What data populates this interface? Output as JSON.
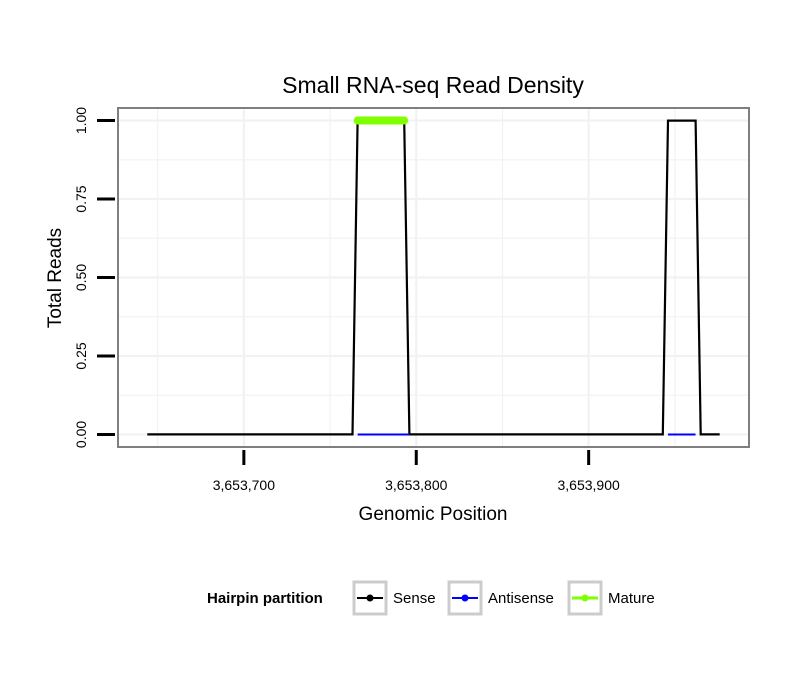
{
  "chart_data": {
    "type": "line",
    "title": "Small RNA-seq Read Density",
    "xlabel": "Genomic Position",
    "ylabel": "Total Reads",
    "xlim": [
      3653627,
      3653993
    ],
    "ylim": [
      -0.04,
      1.04
    ],
    "x_ticks": [
      3653700,
      3653800,
      3653900
    ],
    "x_tick_labels": [
      "3,653,700",
      "3,653,800",
      "3,653,900"
    ],
    "y_ticks": [
      0,
      0.25,
      0.5,
      0.75,
      1.0
    ],
    "y_tick_labels": [
      "0.00",
      "0.25",
      "0.50",
      "0.75",
      "1.00"
    ],
    "grid": true,
    "legend_position": "bottom",
    "legend_title": "Hairpin partition",
    "series": [
      {
        "name": "Sense",
        "color": "#000000",
        "x": [
          3653644,
          3653763,
          3653766,
          3653793,
          3653796,
          3653943,
          3653946,
          3653962,
          3653965,
          3653976
        ],
        "y": [
          0,
          0,
          1,
          1,
          0,
          0,
          1,
          1,
          0,
          0
        ]
      },
      {
        "name": "Antisense",
        "color": "#0000ff",
        "segments": [
          {
            "x": [
              3653766,
              3653796
            ],
            "y": [
              0,
              0
            ]
          },
          {
            "x": [
              3653946,
              3653962
            ],
            "y": [
              0,
              0
            ]
          }
        ]
      },
      {
        "name": "Mature",
        "color": "#7fff00",
        "segments": [
          {
            "x": [
              3653766,
              3653793
            ],
            "y": [
              1,
              1
            ]
          }
        ]
      }
    ]
  }
}
